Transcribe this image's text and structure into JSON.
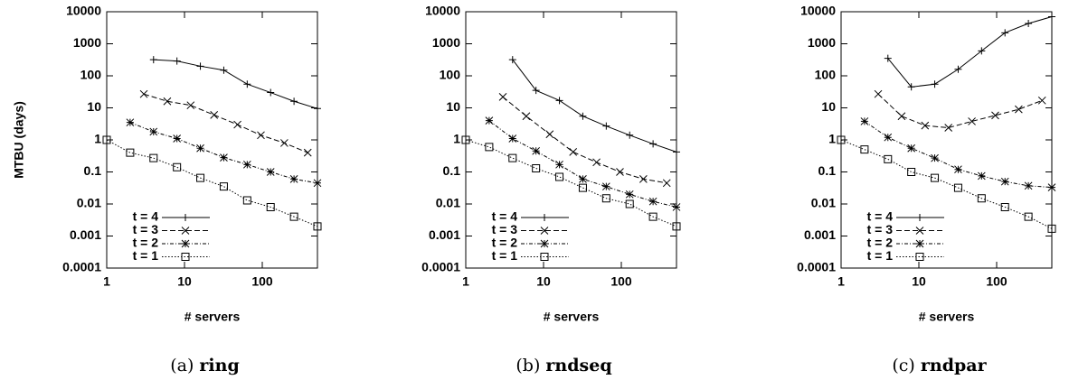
{
  "chart_data": [
    {
      "type": "line",
      "ylabel": "MTBU (days)",
      "xlabel": "# servers",
      "caption_label": "(a)",
      "caption_title": "ring",
      "log_x": true,
      "log_y": true,
      "xlim": [
        1,
        512
      ],
      "ylim": [
        0.0001,
        10000
      ],
      "xticks": [
        1,
        10,
        100
      ],
      "yticks": [
        0.0001,
        0.001,
        0.01,
        0.1,
        1,
        10,
        100,
        1000,
        10000
      ],
      "legend": "lower left",
      "series": [
        {
          "name": "t = 4",
          "color": "#000000",
          "marker": "plus",
          "dash": "solid",
          "x": [
            4,
            8,
            16,
            32,
            64,
            128,
            256,
            512
          ],
          "values": [
            320,
            290,
            200,
            150,
            55,
            30,
            16,
            9.5
          ]
        },
        {
          "name": "t = 3",
          "color": "#000000",
          "marker": "cross",
          "dash": "dashed",
          "x": [
            3,
            6,
            12,
            24,
            48,
            96,
            192,
            384
          ],
          "values": [
            27,
            16,
            12,
            6,
            3,
            1.4,
            0.8,
            0.4
          ]
        },
        {
          "name": "t = 2",
          "color": "#000000",
          "marker": "star",
          "dash": "dashdot",
          "x": [
            2,
            4,
            8,
            16,
            32,
            64,
            128,
            256,
            512
          ],
          "values": [
            3.5,
            1.8,
            1.1,
            0.55,
            0.28,
            0.17,
            0.1,
            0.06,
            0.045
          ]
        },
        {
          "name": "t = 1",
          "color": "#000000",
          "marker": "square",
          "dash": "dotted",
          "x": [
            1,
            2,
            4,
            8,
            16,
            32,
            64,
            128,
            256,
            512
          ],
          "values": [
            1,
            0.4,
            0.27,
            0.14,
            0.065,
            0.035,
            0.013,
            0.008,
            0.004,
            0.002
          ]
        }
      ]
    },
    {
      "type": "line",
      "xlabel": "# servers",
      "caption_label": "(b)",
      "caption_title": "rndseq",
      "log_x": true,
      "log_y": true,
      "xlim": [
        1,
        512
      ],
      "ylim": [
        0.0001,
        10000
      ],
      "xticks": [
        1,
        10,
        100
      ],
      "yticks": [
        0.0001,
        0.001,
        0.01,
        0.1,
        1,
        10,
        100,
        1000,
        10000
      ],
      "legend": "lower left",
      "series": [
        {
          "name": "t = 4",
          "color": "#000000",
          "marker": "plus",
          "dash": "solid",
          "x": [
            4,
            8,
            16,
            32,
            64,
            128,
            256,
            512
          ],
          "values": [
            320,
            35,
            17,
            5.5,
            2.7,
            1.4,
            0.75,
            0.42
          ]
        },
        {
          "name": "t = 3",
          "color": "#000000",
          "marker": "cross",
          "dash": "dashed",
          "x": [
            3,
            6,
            12,
            24,
            48,
            96,
            192,
            384
          ],
          "values": [
            22,
            5.5,
            1.5,
            0.42,
            0.2,
            0.1,
            0.06,
            0.045
          ]
        },
        {
          "name": "t = 2",
          "color": "#000000",
          "marker": "star",
          "dash": "dashdot",
          "x": [
            2,
            4,
            8,
            16,
            32,
            64,
            128,
            256,
            512
          ],
          "values": [
            4,
            1.1,
            0.45,
            0.17,
            0.06,
            0.035,
            0.02,
            0.012,
            0.008
          ]
        },
        {
          "name": "t = 1",
          "color": "#000000",
          "marker": "square",
          "dash": "dotted",
          "x": [
            1,
            2,
            4,
            8,
            16,
            32,
            64,
            128,
            256,
            512
          ],
          "values": [
            1,
            0.6,
            0.27,
            0.13,
            0.07,
            0.032,
            0.015,
            0.01,
            0.004,
            0.002
          ]
        }
      ]
    },
    {
      "type": "line",
      "xlabel": "# servers",
      "caption_label": "(c)",
      "caption_title": "rndpar",
      "log_x": true,
      "log_y": true,
      "xlim": [
        1,
        512
      ],
      "ylim": [
        0.0001,
        10000
      ],
      "xticks": [
        1,
        10,
        100
      ],
      "yticks": [
        0.0001,
        0.001,
        0.01,
        0.1,
        1,
        10,
        100,
        1000,
        10000
      ],
      "legend": "lower left",
      "series": [
        {
          "name": "t = 4",
          "color": "#000000",
          "marker": "plus",
          "dash": "solid",
          "x": [
            4,
            8,
            16,
            32,
            64,
            128,
            256,
            512
          ],
          "values": [
            350,
            45,
            55,
            160,
            600,
            2200,
            4300,
            7000
          ]
        },
        {
          "name": "t = 3",
          "color": "#000000",
          "marker": "cross",
          "dash": "dashed",
          "x": [
            3,
            6,
            12,
            24,
            48,
            96,
            192,
            384
          ],
          "values": [
            27,
            5.5,
            2.8,
            2.4,
            3.8,
            5.8,
            9,
            17
          ]
        },
        {
          "name": "t = 2",
          "color": "#000000",
          "marker": "star",
          "dash": "dashdot",
          "x": [
            2,
            4,
            8,
            16,
            32,
            64,
            128,
            256,
            512
          ],
          "values": [
            3.8,
            1.2,
            0.55,
            0.27,
            0.12,
            0.075,
            0.05,
            0.037,
            0.033
          ]
        },
        {
          "name": "t = 1",
          "color": "#000000",
          "marker": "square",
          "dash": "dotted",
          "x": [
            1,
            2,
            4,
            8,
            16,
            32,
            64,
            128,
            256,
            512
          ],
          "values": [
            1,
            0.5,
            0.25,
            0.1,
            0.065,
            0.032,
            0.015,
            0.008,
            0.004,
            0.0017
          ]
        }
      ]
    }
  ]
}
